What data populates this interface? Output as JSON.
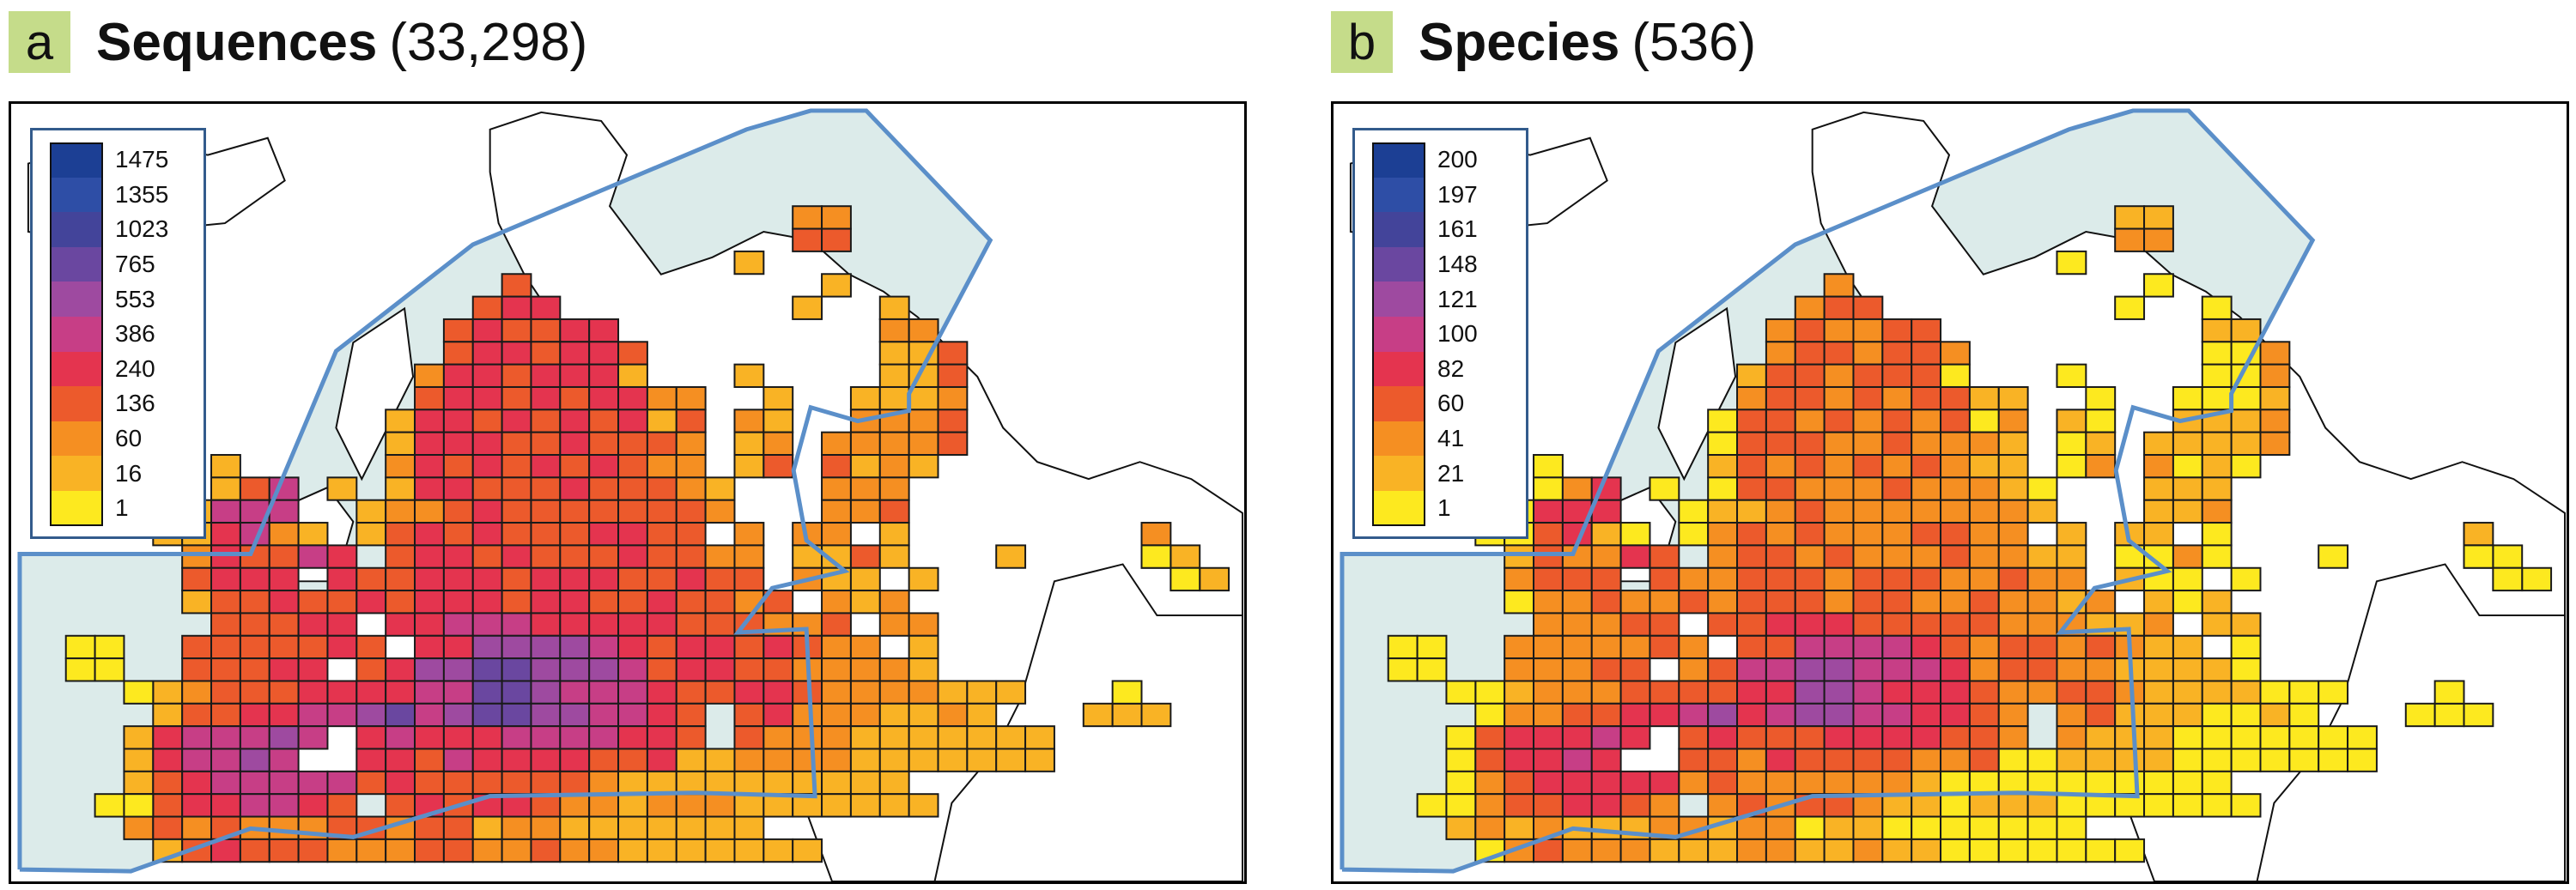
{
  "panels": [
    {
      "letter": "a",
      "title": "Sequences",
      "count": "(33,298)",
      "legend": {
        "labels": [
          "1475",
          "1355",
          "1023",
          "765",
          "553",
          "386",
          "240",
          "136",
          "60",
          "16",
          "1"
        ],
        "colors": [
          "#1c3f94",
          "#2e4ea6",
          "#43449a",
          "#6a47a0",
          "#9e4aa0",
          "#c73e86",
          "#e4344f",
          "#ec5a2c",
          "#f58f22",
          "#f9b325",
          "#fde91f"
        ]
      }
    },
    {
      "letter": "b",
      "title": "Species",
      "count": "(536)",
      "legend": {
        "labels": [
          "200",
          "197",
          "161",
          "148",
          "121",
          "100",
          "82",
          "60",
          "41",
          "21",
          "1"
        ],
        "colors": [
          "#1c3f94",
          "#2e4ea6",
          "#43449a",
          "#6a47a0",
          "#9e4aa0",
          "#c73e86",
          "#e4344f",
          "#ec5a2c",
          "#f58f22",
          "#f9b325",
          "#fde91f"
        ]
      }
    }
  ],
  "colors": {
    "badge": "#c5dc8a",
    "sea": "#dcebea",
    "boundary": "#5b8fc9",
    "cell_border": "#1a1a1a",
    "coast": "#111111"
  }
}
